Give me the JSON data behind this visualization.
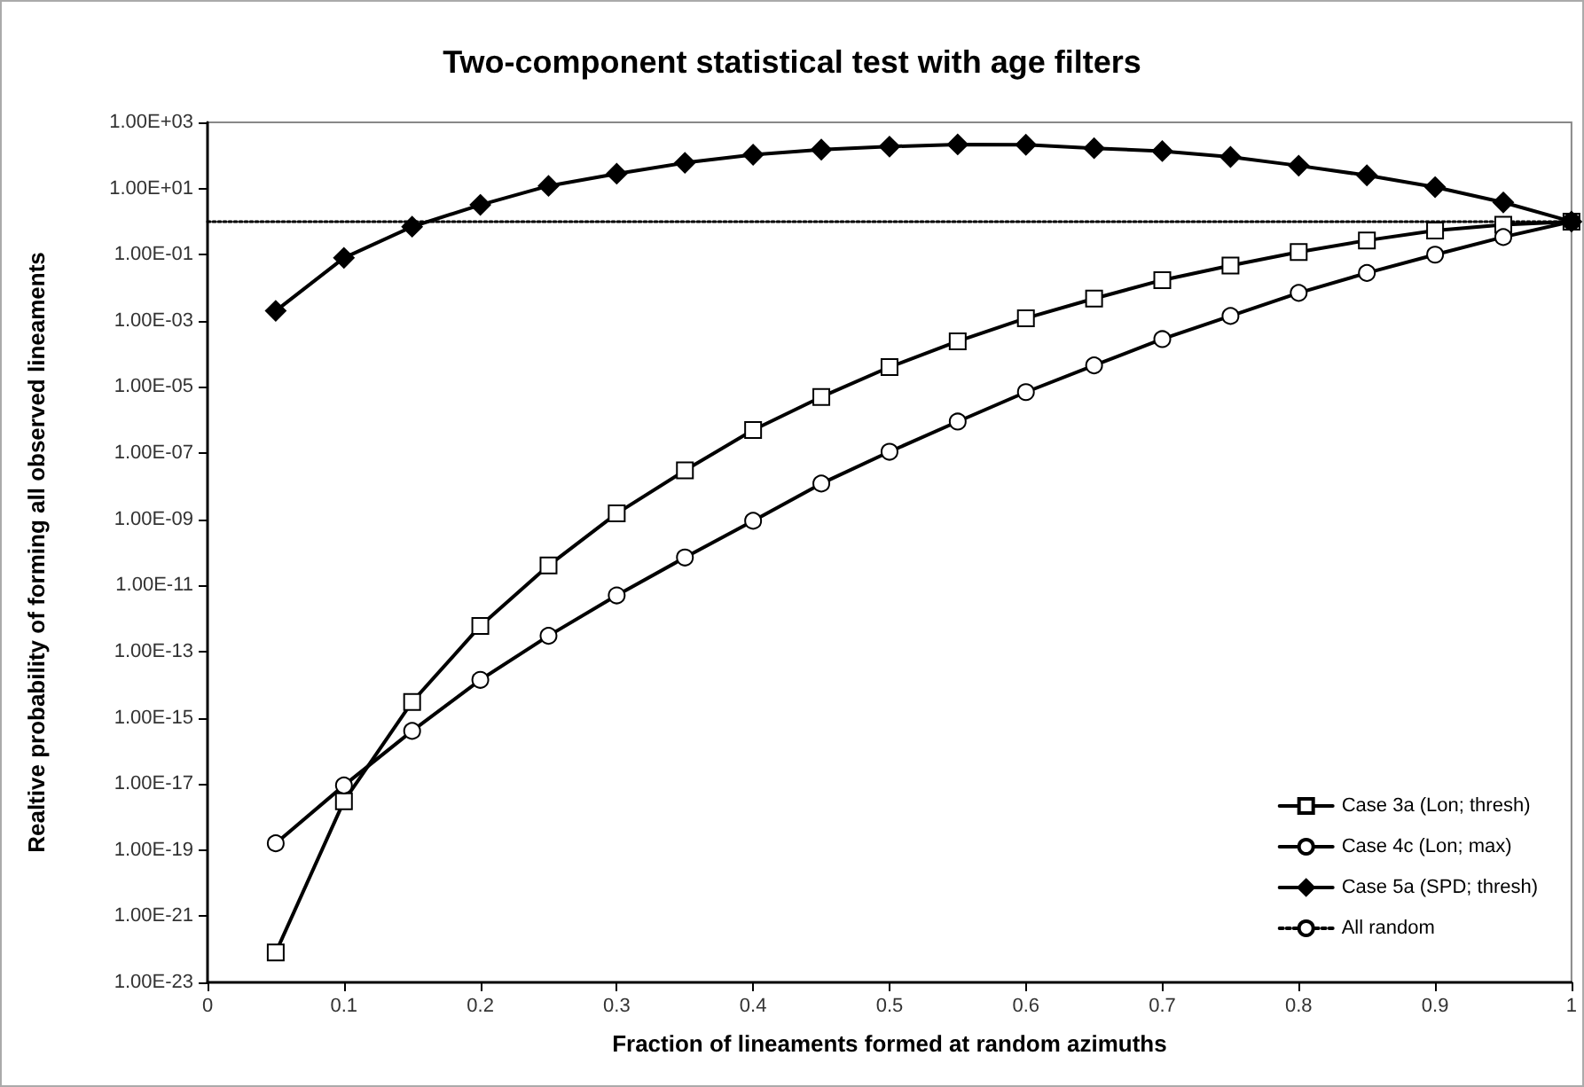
{
  "chart_data": {
    "type": "line",
    "title": "Two-component statistical test with age filters",
    "xlabel": "Fraction of lineaments formed at random azimuths",
    "ylabel": "Realtive probability of forming all observed lineaments",
    "x": [
      0.05,
      0.1,
      0.15,
      0.2,
      0.25,
      0.3,
      0.35,
      0.4,
      0.45,
      0.5,
      0.55,
      0.6,
      0.65,
      0.7,
      0.75,
      0.8,
      0.85,
      0.9,
      0.95,
      1
    ],
    "series": [
      {
        "name": "Case 3a (Lon; thresh)",
        "color": "#000000",
        "marker": "square",
        "line_style": "solid",
        "values": [
          8e-23,
          3e-18,
          3e-15,
          6e-13,
          4e-11,
          1.5e-09,
          3e-08,
          5e-07,
          5e-06,
          4e-05,
          0.00024,
          0.0012,
          0.0047,
          0.017,
          0.047,
          0.12,
          0.27,
          0.54,
          0.8,
          1
        ]
      },
      {
        "name": "Case 4c (Lon; max)",
        "color": "#000000",
        "marker": "circle",
        "line_style": "solid",
        "values": [
          1.6e-19,
          9e-18,
          4e-16,
          1.4e-14,
          3e-13,
          5e-12,
          7e-11,
          9e-10,
          1.2e-08,
          1.1e-07,
          9e-07,
          7e-06,
          4.5e-05,
          0.00028,
          0.0014,
          0.007,
          0.028,
          0.1,
          0.34,
          1
        ]
      },
      {
        "name": "Case 5a (SPD; thresh)",
        "color": "#000000",
        "marker": "diamond",
        "line_style": "solid",
        "values": [
          0.002,
          0.08,
          0.7,
          3.2,
          12,
          28,
          60,
          105,
          150,
          185,
          215,
          210,
          165,
          135,
          90,
          49,
          25,
          11,
          3.8,
          1
        ]
      },
      {
        "name": "All random",
        "color": "#000000",
        "marker": "none",
        "line_style": "dotted",
        "x": [
          0,
          1
        ],
        "values": [
          1,
          1
        ]
      }
    ],
    "log": "y",
    "xlim": [
      0,
      1
    ],
    "xticks": [
      0,
      0.1,
      0.2,
      0.3,
      0.4,
      0.5,
      0.6,
      0.7,
      0.8,
      0.9,
      1
    ],
    "ylim": [
      1e-23,
      1000
    ],
    "yticks": [
      {
        "value": 1e-23,
        "label": "1.00E-23"
      },
      {
        "value": 1e-21,
        "label": "1.00E-21"
      },
      {
        "value": 1e-19,
        "label": "1.00E-19"
      },
      {
        "value": 1e-17,
        "label": "1.00E-17"
      },
      {
        "value": 1e-15,
        "label": "1.00E-15"
      },
      {
        "value": 1e-13,
        "label": "1.00E-13"
      },
      {
        "value": 1e-11,
        "label": "1.00E-11"
      },
      {
        "value": 1e-09,
        "label": "1.00E-09"
      },
      {
        "value": 1e-07,
        "label": "1.00E-07"
      },
      {
        "value": 1e-05,
        "label": "1.00E-05"
      },
      {
        "value": 0.001,
        "label": "1.00E-03"
      },
      {
        "value": 0.1,
        "label": "1.00E-01"
      },
      {
        "value": 10,
        "label": "1.00E+01"
      },
      {
        "value": 1000,
        "label": "1.00E+03"
      }
    ],
    "grid": false,
    "legend": "bottom right"
  }
}
